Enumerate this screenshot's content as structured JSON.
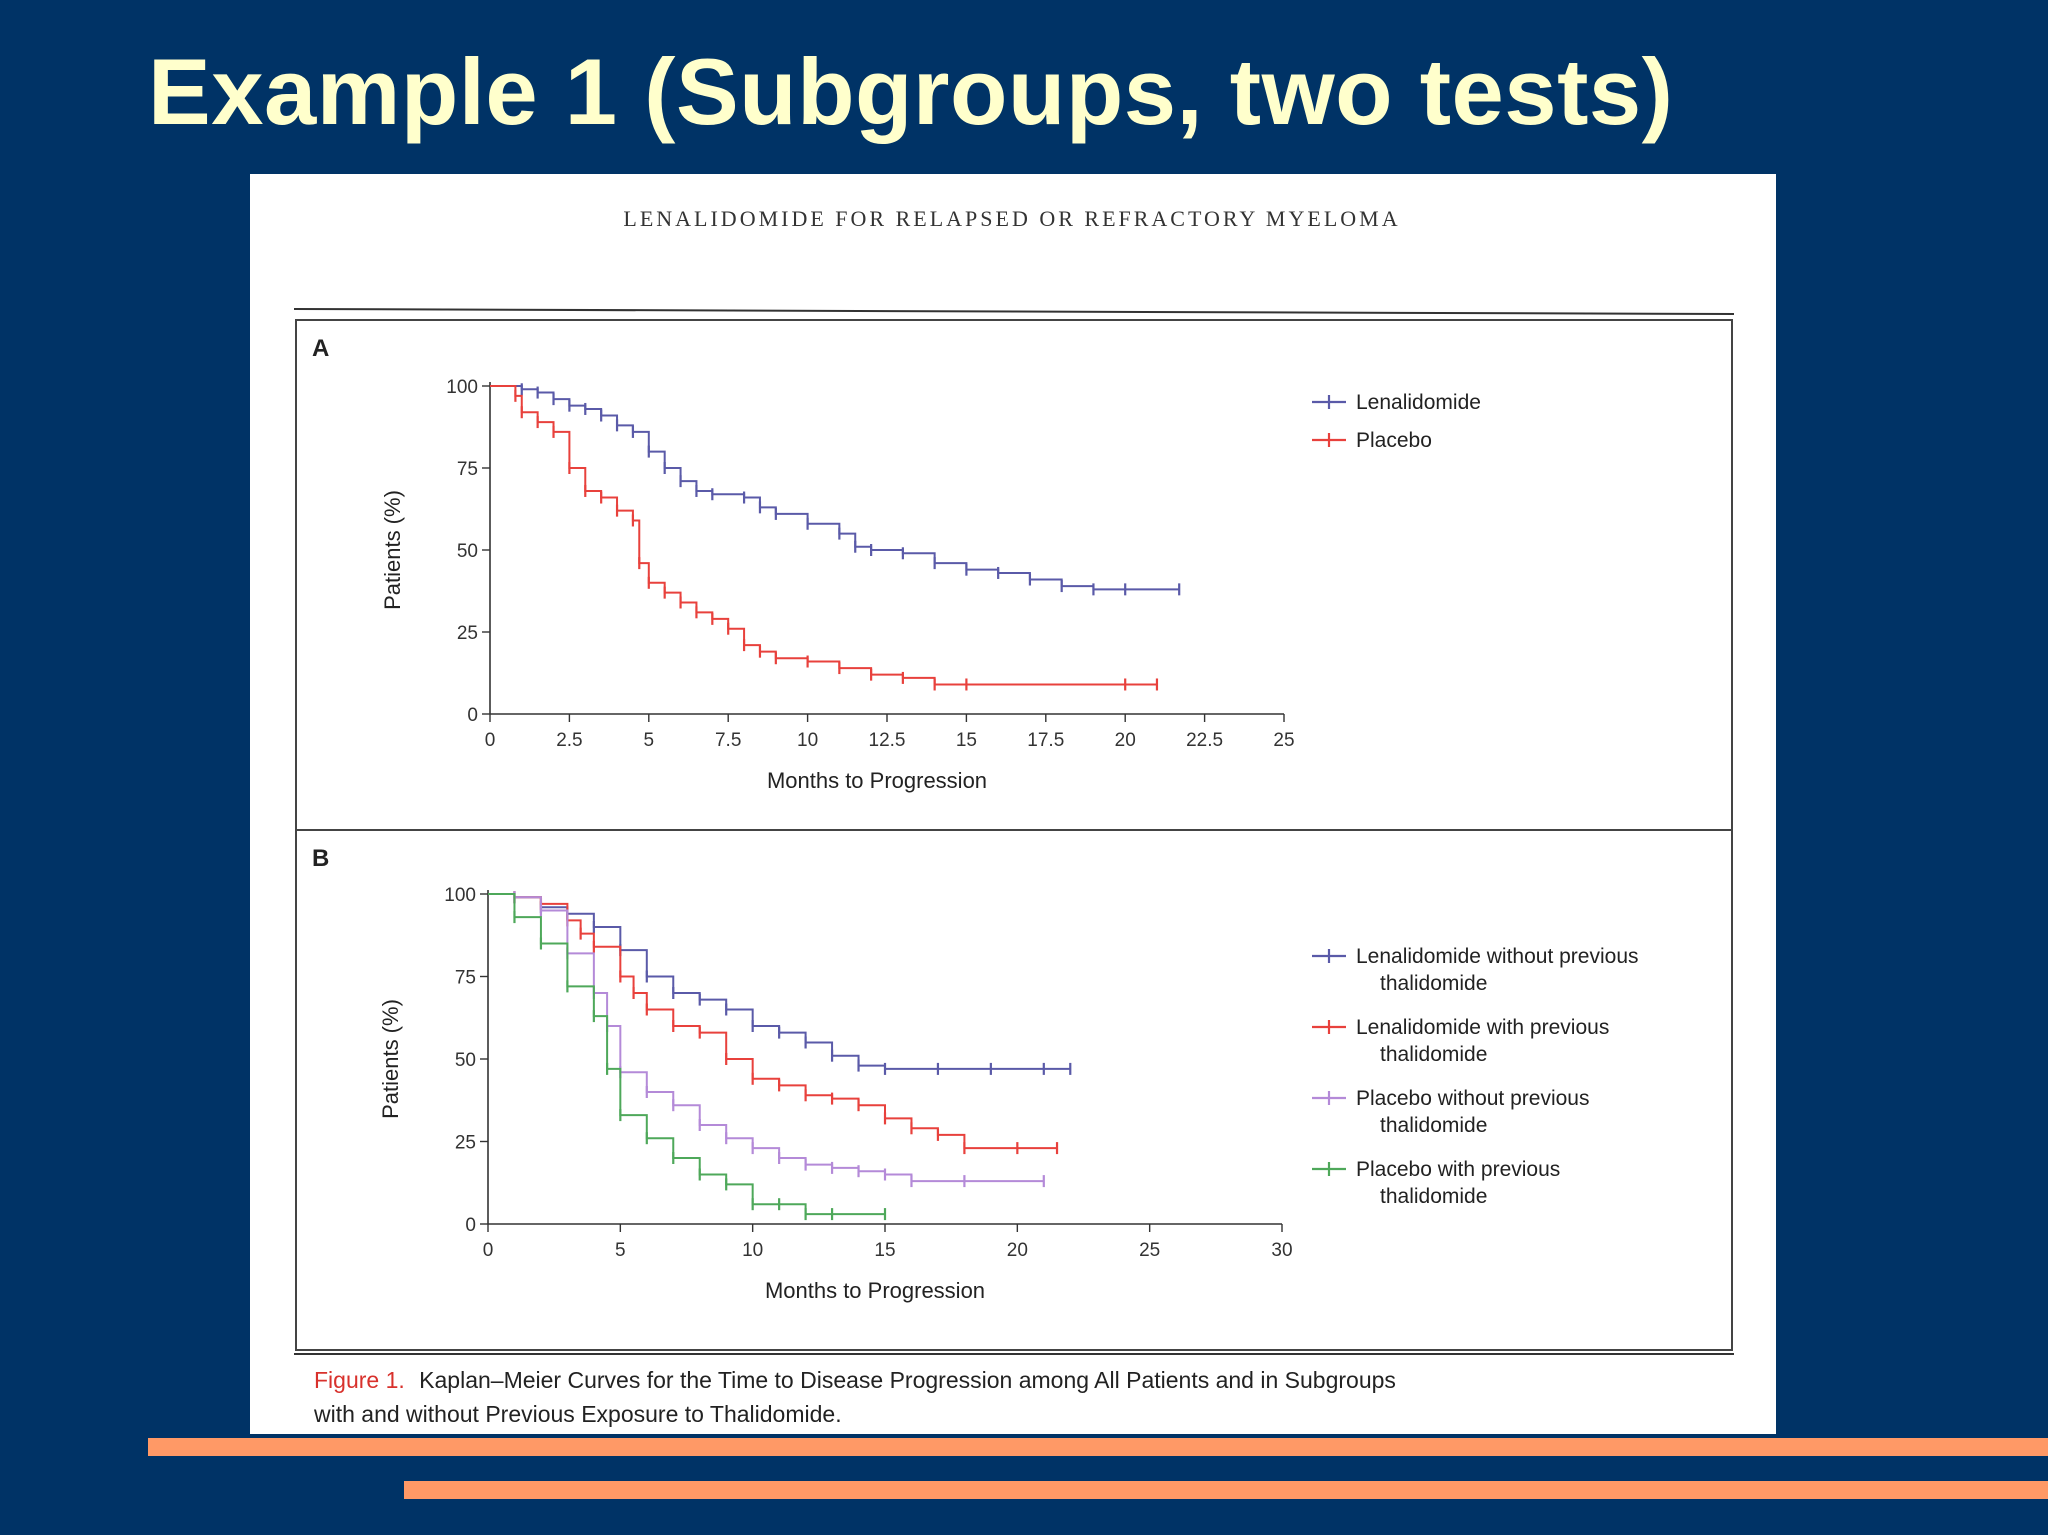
{
  "slide": {
    "title": "Example 1 (Subgroups, two tests)",
    "colors": {
      "background": "#003366",
      "title": "#FFFFCC",
      "accent_bars": "#FF9966"
    }
  },
  "figure": {
    "header": "LENALIDOMIDE FOR RELAPSED OR REFRACTORY MYELOMA",
    "caption_label": "Figure 1.",
    "caption_text_line1": "Kaplan–Meier Curves for the Time to Disease Progression among All Patients and in Subgroups",
    "caption_text_line2": "with and without Previous Exposure to Thalidomide."
  },
  "chart_data": [
    {
      "type": "line",
      "panel": "A",
      "xlabel": "Months to Progression",
      "ylabel": "Patients (%)",
      "xlim": [
        0,
        25
      ],
      "ylim": [
        0,
        100
      ],
      "xticks": [
        "0",
        "2.5",
        "5",
        "7.5",
        "10",
        "12.5",
        "15",
        "17.5",
        "20",
        "22.5",
        "25"
      ],
      "yticks": [
        "0",
        "25",
        "50",
        "75",
        "100"
      ],
      "legend_position": "top-right",
      "series": [
        {
          "name": "Lenalidomide",
          "color": "#5a5aa8",
          "points": [
            [
              0,
              100
            ],
            [
              1,
              99
            ],
            [
              1.5,
              98
            ],
            [
              2,
              96
            ],
            [
              2.5,
              94
            ],
            [
              3,
              93
            ],
            [
              3.5,
              91
            ],
            [
              4,
              88
            ],
            [
              4.5,
              86
            ],
            [
              5,
              80
            ],
            [
              5.5,
              75
            ],
            [
              6,
              71
            ],
            [
              6.5,
              68
            ],
            [
              7,
              67
            ],
            [
              8,
              66
            ],
            [
              8.5,
              63
            ],
            [
              9,
              61
            ],
            [
              10,
              58
            ],
            [
              11,
              55
            ],
            [
              11.5,
              51
            ],
            [
              12,
              50
            ],
            [
              13,
              49
            ],
            [
              14,
              46
            ],
            [
              15,
              44
            ],
            [
              16,
              43
            ],
            [
              17,
              41
            ],
            [
              18,
              39
            ],
            [
              19,
              38
            ],
            [
              20,
              38
            ],
            [
              21.7,
              38
            ]
          ]
        },
        {
          "name": "Placebo",
          "color": "#e8413c",
          "points": [
            [
              0,
              100
            ],
            [
              0.8,
              97
            ],
            [
              1,
              92
            ],
            [
              1.5,
              89
            ],
            [
              2,
              86
            ],
            [
              2.5,
              75
            ],
            [
              3,
              68
            ],
            [
              3.5,
              66
            ],
            [
              4,
              62
            ],
            [
              4.5,
              59
            ],
            [
              4.7,
              46
            ],
            [
              5,
              40
            ],
            [
              5.5,
              37
            ],
            [
              6,
              34
            ],
            [
              6.5,
              31
            ],
            [
              7,
              29
            ],
            [
              7.5,
              26
            ],
            [
              8,
              21
            ],
            [
              8.5,
              19
            ],
            [
              9,
              17
            ],
            [
              10,
              16
            ],
            [
              11,
              14
            ],
            [
              12,
              12
            ],
            [
              13,
              11
            ],
            [
              14,
              9
            ],
            [
              15,
              9
            ],
            [
              20,
              9
            ],
            [
              21,
              9
            ]
          ]
        }
      ]
    },
    {
      "type": "line",
      "panel": "B",
      "xlabel": "Months to Progression",
      "ylabel": "Patients (%)",
      "xlim": [
        0,
        30
      ],
      "ylim": [
        0,
        100
      ],
      "xticks": [
        "0",
        "5",
        "10",
        "15",
        "20",
        "25",
        "30"
      ],
      "yticks": [
        "0",
        "25",
        "50",
        "75",
        "100"
      ],
      "legend_position": "right",
      "series": [
        {
          "name": "Lenalidomide without previous thalidomide",
          "color": "#5a5aa8",
          "points": [
            [
              0,
              100
            ],
            [
              1,
              99
            ],
            [
              2,
              96
            ],
            [
              3,
              94
            ],
            [
              4,
              90
            ],
            [
              5,
              83
            ],
            [
              6,
              75
            ],
            [
              7,
              70
            ],
            [
              8,
              68
            ],
            [
              9,
              65
            ],
            [
              10,
              60
            ],
            [
              11,
              58
            ],
            [
              12,
              55
            ],
            [
              13,
              51
            ],
            [
              14,
              48
            ],
            [
              15,
              47
            ],
            [
              17,
              47
            ],
            [
              19,
              47
            ],
            [
              21,
              47
            ],
            [
              22,
              47
            ]
          ]
        },
        {
          "name": "Lenalidomide with previous thalidomide",
          "color": "#e8413c",
          "points": [
            [
              0,
              100
            ],
            [
              1,
              99
            ],
            [
              2,
              97
            ],
            [
              3,
              92
            ],
            [
              3.5,
              88
            ],
            [
              4,
              84
            ],
            [
              5,
              75
            ],
            [
              5.5,
              70
            ],
            [
              6,
              65
            ],
            [
              7,
              60
            ],
            [
              8,
              58
            ],
            [
              9,
              50
            ],
            [
              10,
              44
            ],
            [
              11,
              42
            ],
            [
              12,
              39
            ],
            [
              13,
              38
            ],
            [
              14,
              36
            ],
            [
              15,
              32
            ],
            [
              16,
              29
            ],
            [
              17,
              27
            ],
            [
              18,
              23
            ],
            [
              20,
              23
            ],
            [
              21.5,
              23
            ]
          ]
        },
        {
          "name": "Placebo without previous thalidomide",
          "color": "#b48ad8",
          "points": [
            [
              0,
              100
            ],
            [
              1,
              99
            ],
            [
              2,
              95
            ],
            [
              3,
              82
            ],
            [
              4,
              70
            ],
            [
              4.5,
              60
            ],
            [
              5,
              46
            ],
            [
              6,
              40
            ],
            [
              7,
              36
            ],
            [
              8,
              30
            ],
            [
              9,
              26
            ],
            [
              10,
              23
            ],
            [
              11,
              20
            ],
            [
              12,
              18
            ],
            [
              13,
              17
            ],
            [
              14,
              16
            ],
            [
              15,
              15
            ],
            [
              16,
              13
            ],
            [
              18,
              13
            ],
            [
              21,
              13
            ]
          ]
        },
        {
          "name": "Placebo with previous thalidomide",
          "color": "#4ea85a",
          "points": [
            [
              0,
              100
            ],
            [
              1,
              93
            ],
            [
              2,
              85
            ],
            [
              3,
              72
            ],
            [
              4,
              63
            ],
            [
              4.5,
              47
            ],
            [
              5,
              33
            ],
            [
              6,
              26
            ],
            [
              7,
              20
            ],
            [
              8,
              15
            ],
            [
              9,
              12
            ],
            [
              10,
              6
            ],
            [
              11,
              6
            ],
            [
              12,
              3
            ],
            [
              13,
              3
            ],
            [
              15,
              3
            ]
          ]
        }
      ]
    }
  ]
}
